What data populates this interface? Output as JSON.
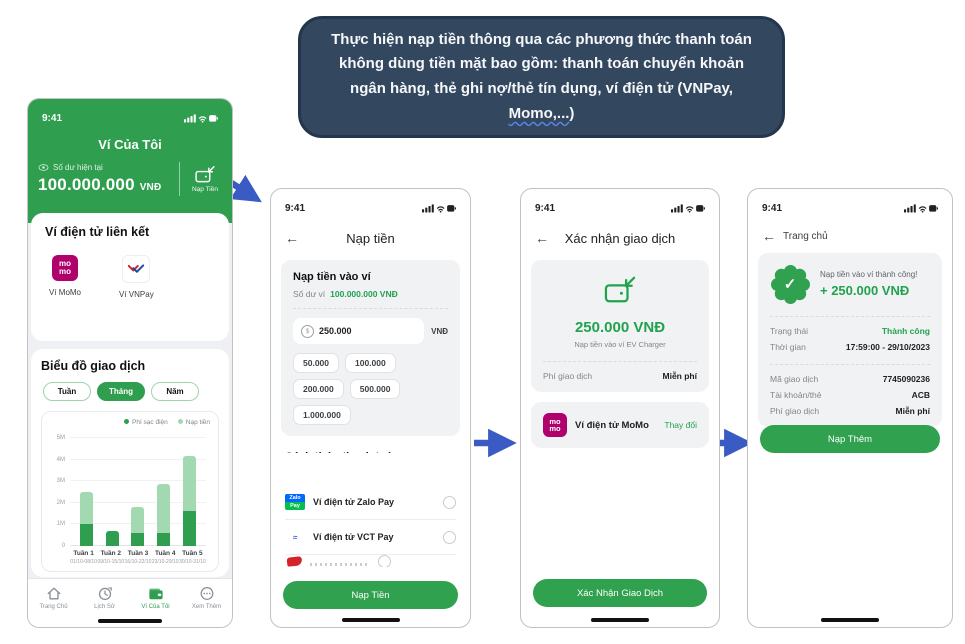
{
  "bubble": {
    "text_before": "Thực hiện nạp tiền thông qua các phương thức thanh toán không dùng tiền mặt bao gồm: thanh toán chuyển khoản ngân hàng, thẻ ghi nợ/thẻ tín dụng, ví điện tử (VNPay, ",
    "text_underlined": "Momo,...",
    "text_after": ")"
  },
  "colors": {
    "primary_green": "#2f9e4f",
    "button_green": "#2fa14f",
    "text_green": "#21a24e",
    "momo_pink": "#b0006b",
    "arrow_blue": "#3a5bc4",
    "bubble_navy": "#33475e"
  },
  "glyphs": {
    "back": "←",
    "check": "✓",
    "vct_logo": "≈",
    "coin": "$"
  },
  "screen1": {
    "status_time": "9:41",
    "title": "Ví Của Tôi",
    "balance_label": "Số dư hiện tại",
    "balance_value": "100.000.000",
    "balance_currency": "VNĐ",
    "topup_label": "Nạp Tiền",
    "linked_title": "Ví điện tử liên kết",
    "wallets": [
      {
        "label": "Ví MoMo",
        "logo_line1": "mo",
        "logo_line2": "mo"
      },
      {
        "label": "Ví VNPay"
      }
    ],
    "chart_title": "Biểu đồ giao dịch",
    "tabs": [
      {
        "label": "Tuần"
      },
      {
        "label": "Tháng"
      },
      {
        "label": "Năm"
      }
    ],
    "active_tab": "Tháng",
    "chart": {
      "type": "bar",
      "stacked": true,
      "categories": [
        "Tuần 1",
        "Tuần 2",
        "Tuần 3",
        "Tuần 4",
        "Tuần 5"
      ],
      "sublabels": [
        "01/10-08/10",
        "09/10-15/10",
        "16/10-22/10",
        "23/10-29/10",
        "30/10-31/10"
      ],
      "series": [
        {
          "name": "Phí sạc điện",
          "color": "#2f9e4f",
          "values": [
            1.0,
            0.7,
            0.6,
            0.6,
            1.6
          ]
        },
        {
          "name": "Nạp tiền",
          "color": "#a3d9b0",
          "values": [
            1.5,
            0,
            1.2,
            2.25,
            2.55
          ]
        }
      ],
      "unit": "M",
      "ymax": 5,
      "yticks": [
        {
          "label": "0",
          "value": 0
        },
        {
          "label": "1M",
          "value": 1
        },
        {
          "label": "2M",
          "value": 2
        },
        {
          "label": "3M",
          "value": 3
        },
        {
          "label": "4M",
          "value": 4
        },
        {
          "label": "5M",
          "value": 5
        }
      ],
      "grid": true,
      "legend_position": "top-right"
    },
    "nav": [
      {
        "label": "Trang Chủ"
      },
      {
        "label": "Lịch Sử"
      },
      {
        "label": "Ví Của Tôi"
      },
      {
        "label": "Xem Thêm"
      }
    ],
    "active_nav": "Ví Của Tôi"
  },
  "screen2": {
    "status_time": "9:41",
    "title": "Nạp tiền",
    "card_title": "Nạp tiền vào ví",
    "balance_label": "Số dư ví",
    "balance_value": "100.000.000 VNĐ",
    "amount_value": "250.000",
    "currency": "VNĐ",
    "chips": [
      "50.000",
      "100.000",
      "200.000",
      "500.000",
      "1.000.000"
    ],
    "section_heading": "Cách thức thanh toán",
    "methods": [
      {
        "name": "Ví điện tử Zalo Pay",
        "logo_top": "Zalo",
        "logo_bottom": "Pay"
      },
      {
        "name": "Ví điện tử VCT Pay"
      }
    ],
    "submit_label": "Nạp Tiền"
  },
  "screen3": {
    "status_time": "9:41",
    "title": "Xác nhận giao dịch",
    "amount": "250.000 VNĐ",
    "description": "Nạp tiền vào ví EV Charger",
    "fee_label": "Phí giao dịch",
    "fee_value": "Miễn phí",
    "method_name": "Ví điện tử MoMo",
    "momo_logo_line1": "mo",
    "momo_logo_line2": "mo",
    "change_label": "Thay đổi",
    "submit_label": "Xác Nhận Giao Dịch"
  },
  "screen4": {
    "status_time": "9:41",
    "back_label": "Trang chủ",
    "success_message": "Nạp tiền vào ví thành công!",
    "amount": "+ 250.000 VNĐ",
    "rows": [
      {
        "label": "Trạng thái",
        "value": "Thành công",
        "highlight": true
      },
      {
        "label": "Thời gian",
        "value": "17:59:00 - 29/10/2023"
      },
      {
        "label": "Mã giao dịch",
        "value": "7745090236"
      },
      {
        "label": "Tài khoản/thẻ",
        "value": "ACB"
      },
      {
        "label": "Phí giao dịch",
        "value": "Miễn phí"
      }
    ],
    "submit_label": "Nạp Thêm"
  }
}
